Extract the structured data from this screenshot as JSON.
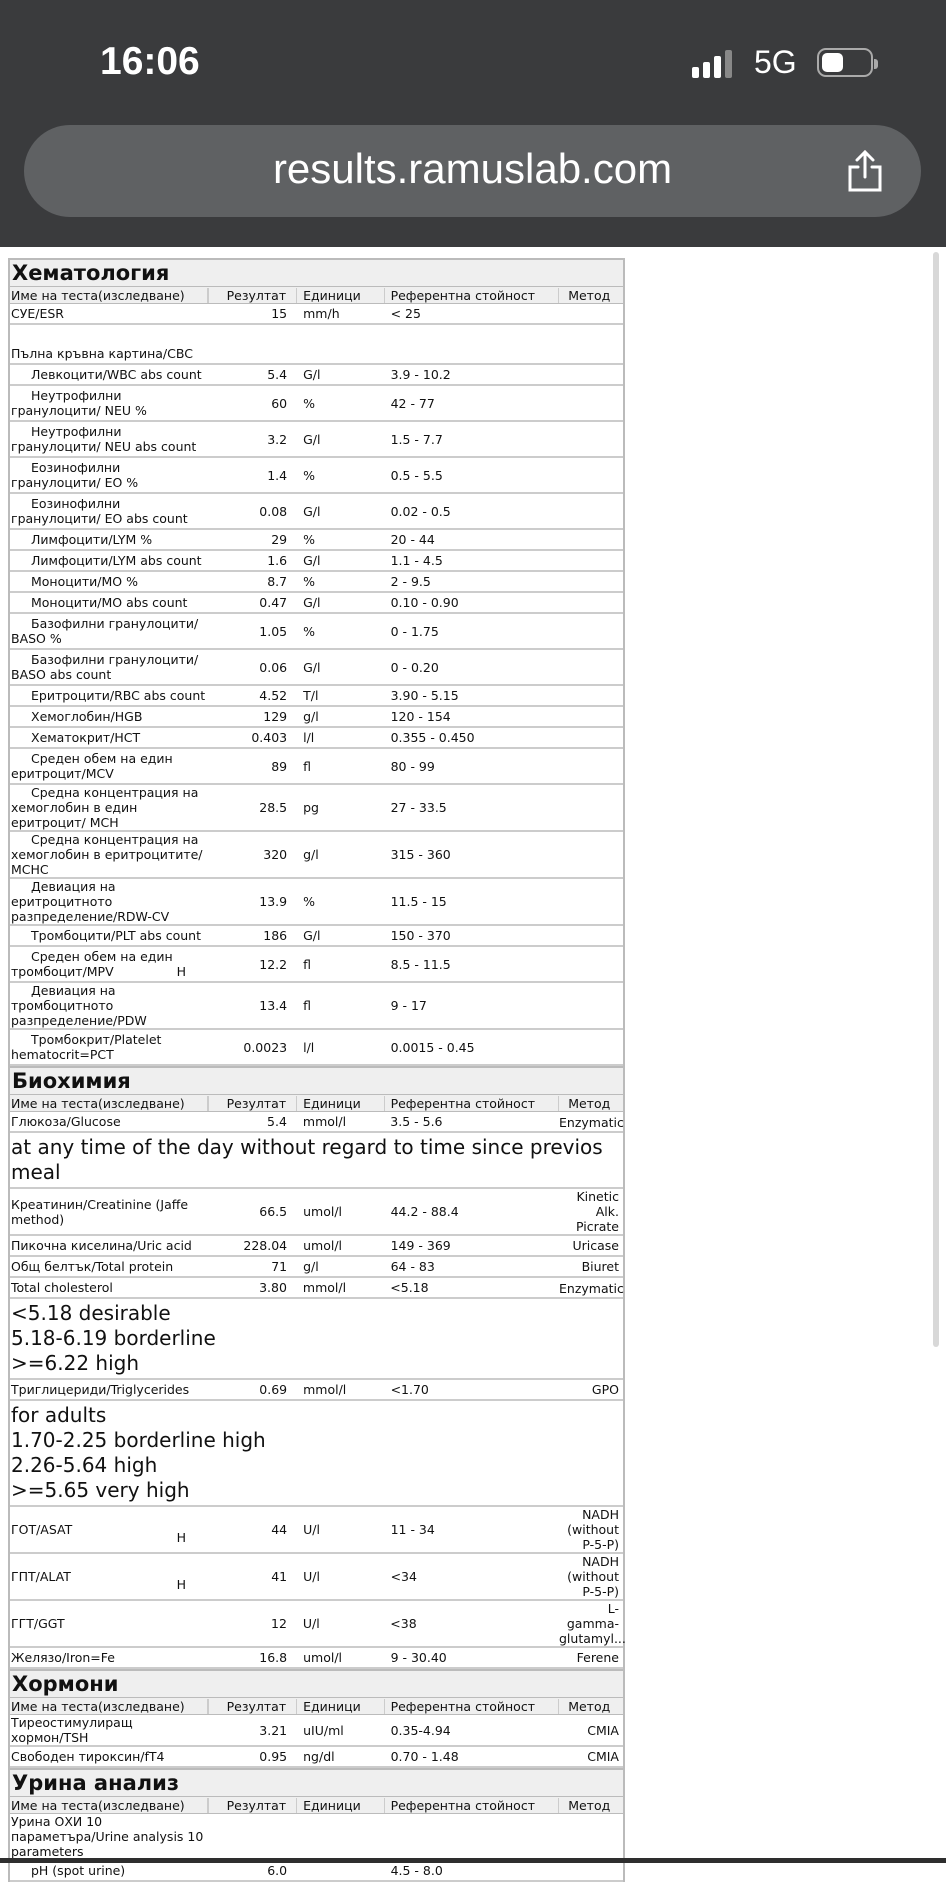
{
  "status_bar": {
    "time": "16:06",
    "network": "5G",
    "battery_level": 0.45
  },
  "browser": {
    "url": "results.ramuslab.com"
  },
  "columns": {
    "name": "Име на теста(изследване)",
    "result": "Резултат",
    "units": "Единици",
    "ref": "Референтна стойност",
    "method": "Метод"
  },
  "sections": [
    {
      "title": "Хематология",
      "rows": [
        {
          "name": "СУЕ/ESR",
          "result": "15",
          "unit": "mm/h",
          "ref": "< 25"
        },
        {
          "type": "group",
          "name": "Пълна кръвна картина/CBC"
        },
        {
          "name": "Левкоцити/WBC abs count",
          "ind": 1,
          "result": "5.4",
          "unit": "G/l",
          "ref": "3.9 - 10.2"
        },
        {
          "name": "Неутрофилни гранулоцити/ NEU %",
          "ind": 1,
          "result": "60",
          "unit": "%",
          "ref": "42 - 77"
        },
        {
          "name": "Неутрофилни гранулоцити/ NEU abs count",
          "ind": 1,
          "result": "3.2",
          "unit": "G/l",
          "ref": "1.5 - 7.7"
        },
        {
          "name": "Еозинофилни гранулоцити/ EO %",
          "ind": 1,
          "result": "1.4",
          "unit": "%",
          "ref": "0.5 - 5.5"
        },
        {
          "name": "Еозинофилни гранулоцити/ EO abs count",
          "ind": 1,
          "result": "0.08",
          "unit": "G/l",
          "ref": "0.02 - 0.5"
        },
        {
          "name": "Лимфоцити/LYM %",
          "ind": 1,
          "result": "29",
          "unit": "%",
          "ref": "20 - 44"
        },
        {
          "name": "Лимфоцити/LYM abs count",
          "ind": 1,
          "result": "1.6",
          "unit": "G/l",
          "ref": "1.1 - 4.5"
        },
        {
          "name": "Моноцити/MO %",
          "ind": 1,
          "result": "8.7",
          "unit": "%",
          "ref": "2 - 9.5"
        },
        {
          "name": "Моноцити/MO abs count",
          "ind": 1,
          "result": "0.47",
          "unit": "G/l",
          "ref": "0.10 - 0.90"
        },
        {
          "name": "Базофилни гранулоцити/ BASO %",
          "ind": 1,
          "result": "1.05",
          "unit": "%",
          "ref": "0 - 1.75"
        },
        {
          "name": "Базофилни гранулоцити/ BASO abs count",
          "ind": 1,
          "result": "0.06",
          "unit": "G/l",
          "ref": "0 - 0.20"
        },
        {
          "name": "Еритроцити/RBC abs count",
          "ind": 1,
          "result": "4.52",
          "unit": "T/l",
          "ref": "3.90 - 5.15"
        },
        {
          "name": "Хемоглобин/HGB",
          "ind": 1,
          "result": "129",
          "unit": "g/l",
          "ref": "120 - 154"
        },
        {
          "name": "Хематокрит/HCT",
          "ind": 1,
          "result": "0.403",
          "unit": "l/l",
          "ref": "0.355 - 0.450"
        },
        {
          "name": "Среден обем на един еритроцит/MCV",
          "ind": 1,
          "result": "89",
          "unit": "fl",
          "ref": "80 - 99"
        },
        {
          "name": "Средна концентрация на хемоглобин в един еритроцит/ MCH",
          "ind": 1,
          "result": "28.5",
          "unit": "pg",
          "ref": "27 - 33.5"
        },
        {
          "name": "Средна концентрация на хемоглобин в еритроцитите/ MCHC",
          "ind": 1,
          "result": "320",
          "unit": "g/l",
          "ref": "315 - 360"
        },
        {
          "name": "Девиация на еритроцитното разпределение/RDW-CV",
          "ind": 1,
          "result": "13.9",
          "unit": "%",
          "ref": "11.5 - 15"
        },
        {
          "name": "Тромбоцити/PLT abs count",
          "ind": 1,
          "result": "186",
          "unit": "G/l",
          "ref": "150 - 370"
        },
        {
          "name": "Среден обем на един тромбоцит/MPV",
          "ind": 1,
          "flag": "H",
          "result": "12.2",
          "unit": "fl",
          "ref": "8.5 - 11.5"
        },
        {
          "name": "Девиация на тромбоцитното разпределение/PDW",
          "ind": 1,
          "result": "13.4",
          "unit": "fl",
          "ref": "9 - 17"
        },
        {
          "name": "Тромбокрит/Platelet hematocrit=PCT",
          "ind": 1,
          "result": "0.0023",
          "unit": "l/l",
          "ref": "0.0015 - 0.45"
        }
      ]
    },
    {
      "title": "Биохимия",
      "rows": [
        {
          "name": "Глюкоза/Glucose",
          "result": "5.4",
          "unit": "mmol/l",
          "ref": "3.5 - 5.6",
          "method": "Enzymatic",
          "low": 1
        },
        {
          "type": "note",
          "text": "at any time of the day without regard to time since previos meal"
        },
        {
          "name": "Креатинин/Creatinine (Jaffe method)",
          "result": "66.5",
          "unit": "umol/l",
          "ref": "44.2 - 88.4",
          "method": "Kinetic Alk. Picrate"
        },
        {
          "name": "Пикочна киселина/Uric acid",
          "result": "228.04",
          "unit": "umol/l",
          "ref": "149 - 369",
          "method": "Uricase"
        },
        {
          "name": "Общ белтък/Total protein",
          "result": "71",
          "unit": "g/l",
          "ref": "64 - 83",
          "method": "Biuret"
        },
        {
          "name": "Total cholesterol",
          "result": "3.80",
          "unit": "mmol/l",
          "ref": "<5.18",
          "method": "Enzymatic",
          "low": 1
        },
        {
          "type": "note",
          "lines": [
            "<5.18 desirable",
            "5.18-6.19 borderline",
            ">=6.22 high"
          ]
        },
        {
          "name": "Триглицериди/Triglycerides",
          "result": "0.69",
          "unit": "mmol/l",
          "ref": "<1.70",
          "method": "GPO"
        },
        {
          "type": "note",
          "lines": [
            "for adults",
            "1.70-2.25 borderline high",
            "2.26-5.64 high",
            ">=5.65 very high"
          ]
        },
        {
          "name": "ГОТ/ASAT",
          "flag": "H",
          "result": "44",
          "unit": "U/l",
          "ref": "11 - 34",
          "method": "NADH (without P-5-P)"
        },
        {
          "name": "ГПТ/ALAT",
          "flag": "H",
          "result": "41",
          "unit": "U/l",
          "ref": "<34",
          "method": "NADH (without P-5-P)"
        },
        {
          "name": "ГГТ/GGT",
          "result": "12",
          "unit": "U/l",
          "ref": "<38",
          "method": "L-gamma-glutamyl..."
        },
        {
          "name": "Желязо/Iron=Fe",
          "result": "16.8",
          "unit": "umol/l",
          "ref": "9 - 30.40",
          "method": "Ferene"
        }
      ]
    },
    {
      "title": "Хормони",
      "rows": [
        {
          "name": "Тиреостимулиращ хормон/TSH",
          "result": "3.21",
          "unit": "uIU/ml",
          "ref": "0.35-4.94",
          "method": "CMIA"
        },
        {
          "name": "Свободен тироксин/fT4",
          "result": "0.95",
          "unit": "ng/dl",
          "ref": "0.70 - 1.48",
          "method": "CMIA"
        }
      ]
    },
    {
      "title": "Урина анализ",
      "rows": [
        {
          "name": "Урина ОХИ 10 параметъра/Urine analysis 10 parameters"
        },
        {
          "name": "pH (spot urine)",
          "ind": 1,
          "result": "6.0",
          "unit": "",
          "ref": "4.5 - 8.0"
        }
      ]
    }
  ]
}
